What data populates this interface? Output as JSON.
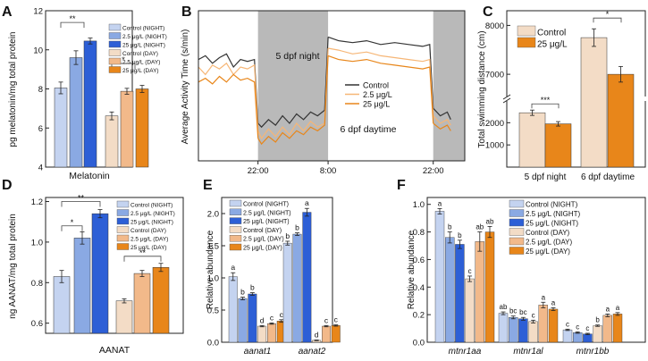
{
  "colors": {
    "ctrl_night": "#c4d3f0",
    "low_night": "#8aa9e3",
    "high_night": "#2d5fd6",
    "ctrl_day": "#f3dcc6",
    "low_day": "#f2b98a",
    "high_day": "#e8861a",
    "shade": "#b9b9b9",
    "ctrl_line": "#333333",
    "low_line": "#f6b676",
    "high_line": "#e8861a"
  },
  "chart_data": [
    {
      "panel": "A",
      "type": "bar",
      "title": "",
      "xlabel": "Melatonin",
      "ylabel": "pg melatonin/mg total protein",
      "ylim": [
        4,
        12
      ],
      "yticks": [
        "4",
        "6",
        "8",
        "10",
        "12"
      ],
      "series": [
        {
          "name": "Control (NIGHT)",
          "color_key": "ctrl_night",
          "value": 8.05,
          "err": 0.3
        },
        {
          "name": "2.5 μg/L (NIGHT)",
          "color_key": "low_night",
          "value": 9.6,
          "err": 0.35
        },
        {
          "name": "25 μg/L (NIGHT)",
          "color_key": "high_night",
          "value": 10.45,
          "err": 0.15
        },
        {
          "name": "Control (DAY)",
          "color_key": "ctrl_day",
          "value": 6.62,
          "err": 0.2
        },
        {
          "name": "2.5 μg/L (DAY)",
          "color_key": "low_day",
          "value": 7.88,
          "err": 0.15
        },
        {
          "name": "25 μg/L (DAY)",
          "color_key": "high_day",
          "value": 8.0,
          "err": 0.18
        }
      ],
      "annotations": [
        "**",
        "*"
      ]
    },
    {
      "panel": "B",
      "type": "line",
      "title": "",
      "xlabel": "",
      "ylabel": "Average Activity Time (s/min)",
      "xticks": [
        "22:00",
        "8:00",
        "22:00"
      ],
      "shaded_labels": [
        "5 dpf night",
        "6 dpf daytime"
      ],
      "ylim": [
        0,
        40
      ],
      "xlim": [
        0,
        38
      ],
      "series": [
        {
          "name": "Control",
          "color_key": "ctrl_line",
          "segments": [
            [
              [
                0,
                27
              ],
              [
                1,
                28
              ],
              [
                2,
                26
              ],
              [
                3,
                27.5
              ],
              [
                4,
                28.5
              ],
              [
                5,
                25
              ],
              [
                6,
                27
              ],
              [
                7,
                26.5
              ],
              [
                8,
                27
              ],
              [
                8.5,
                10
              ]
            ],
            [
              [
                8.5,
                10
              ],
              [
                9,
                9
              ],
              [
                10,
                11
              ],
              [
                11,
                9.5
              ],
              [
                12,
                12
              ],
              [
                13,
                10
              ],
              [
                14,
                12.5
              ],
              [
                15,
                11
              ],
              [
                16,
                13
              ],
              [
                17,
                12
              ],
              [
                18,
                13.5
              ],
              [
                18.5,
                33
              ]
            ],
            [
              [
                18.5,
                33
              ],
              [
                20,
                32
              ],
              [
                22,
                31.5
              ],
              [
                24,
                32
              ],
              [
                26,
                31
              ],
              [
                28,
                31.5
              ],
              [
                30,
                31
              ],
              [
                32,
                30.5
              ],
              [
                33,
                31
              ],
              [
                33.5,
                14
              ]
            ],
            [
              [
                33.5,
                14
              ],
              [
                34.5,
                12
              ],
              [
                35.5,
                13
              ],
              [
                36,
                11
              ]
            ]
          ]
        },
        {
          "name": "2.5 μg/L",
          "color_key": "low_line",
          "segments": [
            [
              [
                0,
                25
              ],
              [
                1,
                23
              ],
              [
                2,
                25.5
              ],
              [
                3,
                24.5
              ],
              [
                4,
                26
              ],
              [
                5,
                23
              ],
              [
                6,
                25
              ],
              [
                7,
                24.5
              ],
              [
                8,
                25.5
              ],
              [
                8.5,
                8
              ]
            ],
            [
              [
                8.5,
                8
              ],
              [
                9,
                6
              ],
              [
                10,
                8.5
              ],
              [
                11,
                6.5
              ],
              [
                12,
                9
              ],
              [
                13,
                7
              ],
              [
                14,
                10
              ],
              [
                15,
                8
              ],
              [
                16,
                10.5
              ],
              [
                17,
                9
              ],
              [
                18,
                10
              ],
              [
                18.5,
                30
              ]
            ],
            [
              [
                18.5,
                30
              ],
              [
                20,
                29.5
              ],
              [
                22,
                28.5
              ],
              [
                24,
                29
              ],
              [
                26,
                28
              ],
              [
                28,
                27.5
              ],
              [
                30,
                27
              ],
              [
                32,
                26.5
              ],
              [
                33,
                27
              ],
              [
                33.5,
                12
              ]
            ],
            [
              [
                33.5,
                12
              ],
              [
                34.5,
                10
              ],
              [
                35.5,
                11
              ],
              [
                36,
                9.5
              ]
            ]
          ]
        },
        {
          "name": "25 μg/L",
          "color_key": "high_line",
          "segments": [
            [
              [
                0,
                21
              ],
              [
                1,
                22
              ],
              [
                2,
                20.5
              ],
              [
                3,
                22.5
              ],
              [
                4,
                21
              ],
              [
                5,
                23
              ],
              [
                6,
                21.5
              ],
              [
                7,
                22
              ],
              [
                8,
                21
              ],
              [
                8.5,
                6
              ]
            ],
            [
              [
                8.5,
                6
              ],
              [
                9,
                4.5
              ],
              [
                10,
                6.5
              ],
              [
                11,
                5
              ],
              [
                12,
                7.5
              ],
              [
                13,
                6
              ],
              [
                14,
                8
              ],
              [
                15,
                7
              ],
              [
                16,
                9
              ],
              [
                17,
                8
              ],
              [
                18,
                9.5
              ],
              [
                18.5,
                28
              ]
            ],
            [
              [
                18.5,
                28
              ],
              [
                20,
                27
              ],
              [
                22,
                26.5
              ],
              [
                24,
                27
              ],
              [
                26,
                26
              ],
              [
                28,
                25.5
              ],
              [
                30,
                25
              ],
              [
                32,
                24.5
              ],
              [
                33,
                25
              ],
              [
                33.5,
                10
              ]
            ],
            [
              [
                33.5,
                10
              ],
              [
                34.5,
                8.5
              ],
              [
                35.5,
                9.5
              ],
              [
                36,
                8
              ]
            ]
          ]
        }
      ]
    },
    {
      "panel": "C",
      "type": "bar",
      "title": "",
      "xlabel": "",
      "ylabel": "Total swimming distance (cm)",
      "categories": [
        "5 dpf night",
        "6 dpf daytime"
      ],
      "yticks": [
        "1000",
        "2000",
        "7000",
        "8000"
      ],
      "axis_break": true,
      "series": [
        {
          "name": "Control",
          "color_key": "ctrl_day",
          "values": [
            2450,
            7750
          ],
          "errs": [
            120,
            180
          ]
        },
        {
          "name": "25 μg/L",
          "color_key": "high_day",
          "values": [
            1950,
            7000
          ],
          "errs": [
            100,
            160
          ]
        }
      ],
      "annotations": [
        "***",
        "*"
      ]
    },
    {
      "panel": "D",
      "type": "bar",
      "title": "",
      "xlabel": "AANAT",
      "ylabel": "ng AANAT/mg total protein",
      "ylim": [
        0.6,
        1.2
      ],
      "yticks": [
        "0.6",
        "0.8",
        "1.0",
        "1.2"
      ],
      "series": [
        {
          "name": "Control (NIGHT)",
          "color_key": "ctrl_night",
          "value": 0.83,
          "err": 0.03
        },
        {
          "name": "2.5 μg/L (NIGHT)",
          "color_key": "low_night",
          "value": 1.02,
          "err": 0.03
        },
        {
          "name": "25 μg/L (NIGHT)",
          "color_key": "high_night",
          "value": 1.14,
          "err": 0.02
        },
        {
          "name": "Control (DAY)",
          "color_key": "ctrl_day",
          "value": 0.71,
          "err": 0.01
        },
        {
          "name": "2.5 μg/L (DAY)",
          "color_key": "low_day",
          "value": 0.845,
          "err": 0.015
        },
        {
          "name": "25 μg/L (DAY)",
          "color_key": "high_day",
          "value": 0.875,
          "err": 0.02
        }
      ],
      "annotations": [
        "*",
        "**",
        "**"
      ]
    },
    {
      "panel": "E",
      "type": "bar",
      "title": "",
      "xlabel": "",
      "ylabel": "Relative abundance",
      "categories": [
        "aanat1",
        "aanat2"
      ],
      "ylim": [
        0,
        2.25
      ],
      "yticks": [
        "0.0",
        "0.5",
        "1.0",
        "1.5",
        "2.0"
      ],
      "series": [
        {
          "name": "Control (NIGHT)",
          "color_key": "ctrl_night",
          "values": [
            1.02,
            1.54
          ],
          "errs": [
            0.06,
            0.03
          ],
          "letters": [
            "a",
            "b"
          ]
        },
        {
          "name": "2.5 μg/L (NIGHT)",
          "color_key": "low_night",
          "values": [
            0.68,
            1.68
          ],
          "errs": [
            0.02,
            0.02
          ],
          "letters": [
            "b",
            "b"
          ]
        },
        {
          "name": "25 μg/L (NIGHT)",
          "color_key": "high_night",
          "values": [
            0.75,
            2.02
          ],
          "errs": [
            0.02,
            0.06
          ],
          "letters": [
            "b",
            "a"
          ]
        },
        {
          "name": "Control (DAY)",
          "color_key": "ctrl_day",
          "values": [
            0.25,
            0.03
          ],
          "errs": [
            0.01,
            0.005
          ],
          "letters": [
            "d",
            "d"
          ]
        },
        {
          "name": "2.5 μg/L (DAY)",
          "color_key": "low_day",
          "values": [
            0.29,
            0.25
          ],
          "errs": [
            0.01,
            0.01
          ],
          "letters": [
            "c",
            "c"
          ]
        },
        {
          "name": "25 μg/L (DAY)",
          "color_key": "high_day",
          "values": [
            0.33,
            0.26
          ],
          "errs": [
            0.02,
            0.01
          ],
          "letters": [
            "c",
            "c"
          ]
        }
      ]
    },
    {
      "panel": "F",
      "type": "bar",
      "title": "",
      "xlabel": "",
      "ylabel": "Relative abundance",
      "categories": [
        "mtnr1aa",
        "mtnr1al",
        "mtnr1bb"
      ],
      "ylim": [
        0,
        1.05
      ],
      "yticks": [
        "0.0",
        "0.2",
        "0.4",
        "0.6",
        "0.8",
        "1.0"
      ],
      "series": [
        {
          "name": "Control (NIGHT)",
          "color_key": "ctrl_night",
          "values": [
            0.95,
            0.21,
            0.09
          ],
          "errs": [
            0.02,
            0.01,
            0.005
          ],
          "letters": [
            "a",
            "ab",
            "c"
          ]
        },
        {
          "name": "2.5 μg/L (NIGHT)",
          "color_key": "low_night",
          "values": [
            0.76,
            0.18,
            0.07
          ],
          "errs": [
            0.04,
            0.01,
            0.005
          ],
          "letters": [
            "b",
            "bc",
            "c"
          ]
        },
        {
          "name": "25 μg/L (NIGHT)",
          "color_key": "high_night",
          "values": [
            0.71,
            0.17,
            0.06
          ],
          "errs": [
            0.03,
            0.01,
            0.005
          ],
          "letters": [
            "b",
            "bc",
            "c"
          ]
        },
        {
          "name": "Control (DAY)",
          "color_key": "ctrl_day",
          "values": [
            0.46,
            0.15,
            0.12
          ],
          "errs": [
            0.02,
            0.01,
            0.005
          ],
          "letters": [
            "c",
            "c",
            "b"
          ]
        },
        {
          "name": "2.5 μg/L (DAY)",
          "color_key": "low_day",
          "values": [
            0.73,
            0.27,
            0.195
          ],
          "errs": [
            0.07,
            0.02,
            0.01
          ],
          "letters": [
            "ab",
            "a",
            "a"
          ]
        },
        {
          "name": "25 μg/L (DAY)",
          "color_key": "high_day",
          "values": [
            0.8,
            0.24,
            0.205
          ],
          "errs": [
            0.04,
            0.01,
            0.01
          ],
          "letters": [
            "ab",
            "a",
            "a"
          ]
        }
      ]
    }
  ],
  "panel_labels": [
    "A",
    "B",
    "C",
    "D",
    "E",
    "F"
  ],
  "legend_six": [
    "Control (NIGHT)",
    "2.5 μg/L (NIGHT)",
    "25 μg/L (NIGHT)",
    "Control (DAY)",
    "2.5 μg/L (DAY)",
    "25 μg/L (DAY)"
  ],
  "legend_b": [
    "Control",
    "2.5 μg/L",
    "25 μg/L"
  ],
  "legend_c": [
    "Control",
    "25 μg/L"
  ]
}
